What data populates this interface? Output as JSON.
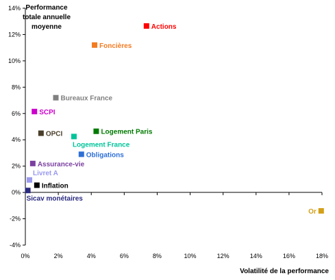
{
  "chart_data": {
    "type": "scatter",
    "title": "",
    "ylabel_lines": [
      "Performance",
      "totale annuelle",
      "moyenne"
    ],
    "xlabel": "Volatilité de la performance",
    "xlim": [
      0,
      18
    ],
    "ylim": [
      -4,
      14
    ],
    "x_ticks": [
      {
        "value": 0,
        "label": "0%"
      },
      {
        "value": 2,
        "label": "2%"
      },
      {
        "value": 4,
        "label": "4%"
      },
      {
        "value": 6,
        "label": "6%"
      },
      {
        "value": 8,
        "label": "8%"
      },
      {
        "value": 10,
        "label": "10%"
      },
      {
        "value": 12,
        "label": "12%"
      },
      {
        "value": 14,
        "label": "14%"
      },
      {
        "value": 16,
        "label": "16%"
      },
      {
        "value": 18,
        "label": "18%"
      }
    ],
    "y_ticks": [
      {
        "value": -4,
        "label": "-4%"
      },
      {
        "value": -2,
        "label": "-2%"
      },
      {
        "value": 0,
        "label": "0%"
      },
      {
        "value": 2,
        "label": "2%"
      },
      {
        "value": 4,
        "label": "4%"
      },
      {
        "value": 6,
        "label": "6%"
      },
      {
        "value": 8,
        "label": "8%"
      },
      {
        "value": 10,
        "label": "10%"
      },
      {
        "value": 12,
        "label": "12%"
      },
      {
        "value": 14,
        "label": "14%"
      }
    ],
    "grid": false,
    "points": [
      {
        "label": "Actions",
        "x": 7.35,
        "y": 12.65,
        "color": "#ff0000",
        "label_pos": "right"
      },
      {
        "label": "Foncières",
        "x": 4.2,
        "y": 11.2,
        "color": "#f47a20",
        "label_pos": "right"
      },
      {
        "label": "Bureaux France",
        "x": 1.85,
        "y": 7.2,
        "color": "#808080",
        "label_pos": "right"
      },
      {
        "label": "SCPI",
        "x": 0.55,
        "y": 6.15,
        "color": "#cc00cc",
        "label_pos": "right"
      },
      {
        "label": "OPCI",
        "x": 0.95,
        "y": 4.5,
        "color": "#4a3f2a",
        "label_pos": "right"
      },
      {
        "label": "Logement Paris",
        "x": 4.3,
        "y": 4.65,
        "color": "#007a00",
        "label_pos": "right"
      },
      {
        "label": "Logement France",
        "x": 2.95,
        "y": 4.25,
        "color": "#00c49a",
        "label_pos": "below-right"
      },
      {
        "label": "Obligations",
        "x": 3.4,
        "y": 2.9,
        "color": "#2e6fd6",
        "label_pos": "right"
      },
      {
        "label": "Assurance-vie",
        "x": 0.45,
        "y": 2.2,
        "color": "#7b3fa0",
        "label_pos": "right"
      },
      {
        "label": "Livret A",
        "x": 0.25,
        "y": 0.95,
        "color": "#9a9aee",
        "label_pos": "above-right"
      },
      {
        "label": "Inflation",
        "x": 0.7,
        "y": 0.55,
        "color": "#000000",
        "label_pos": "right"
      },
      {
        "label": "Sicav monétaires",
        "x": 0.15,
        "y": 0.15,
        "color": "#2a2a80",
        "label_pos": "below-right"
      },
      {
        "label": "Or",
        "x": 17.95,
        "y": -1.4,
        "color": "#d4a017",
        "label_pos": "left"
      }
    ]
  }
}
